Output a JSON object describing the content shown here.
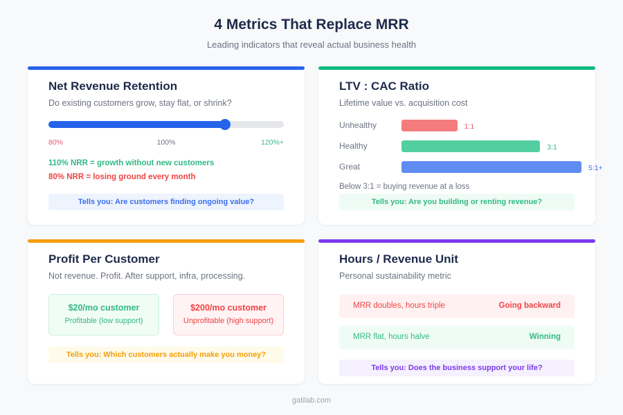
{
  "header": {
    "title": "4 Metrics That Replace MRR",
    "subtitle": "Leading indicators that reveal actual business health"
  },
  "nrr": {
    "title": "Net Revenue Retention",
    "subtitle": "Do existing customers grow, stay flat, or shrink?",
    "slider_percent": 75,
    "labels": [
      "80%",
      "100%",
      "120%+"
    ],
    "good": "110% NRR = growth without new customers",
    "bad": "80% NRR = losing ground every month",
    "tells": "Tells you: Are customers finding ongoing value?",
    "accent": "#2563eb"
  },
  "ltv": {
    "title": "LTV : CAC Ratio",
    "subtitle": "Lifetime value vs. acquisition cost",
    "rows": [
      {
        "label": "Unhealthy",
        "value": "1:1",
        "level": 0.31,
        "color": "#f47c7c",
        "text_color": "#f0506e"
      },
      {
        "label": "Healthy",
        "value": "3:1",
        "level": 0.77,
        "color": "#52cfa0",
        "text_color": "#34b886"
      },
      {
        "label": "Great",
        "value": "5:1+",
        "level": 1.0,
        "color": "#5f8cf0",
        "text_color": "#3b6ef0"
      }
    ],
    "note": "Below 3:1 = buying revenue at a loss",
    "tells": "Tells you: Are you building or renting revenue?",
    "accent": "#10b981"
  },
  "profit": {
    "title": "Profit Per Customer",
    "subtitle": "Not revenue. Profit. After support, infra, processing.",
    "good": {
      "title": "$20/mo customer",
      "desc": "Profitable (low support)"
    },
    "bad": {
      "title": "$200/mo customer",
      "desc": "Unprofitable (high support)"
    },
    "tells": "Tells you: Which customers actually make you money?",
    "accent": "#f59e0b"
  },
  "hours": {
    "title": "Hours / Revenue Unit",
    "subtitle": "Personal sustainability metric",
    "rows": [
      {
        "text": "MRR doubles, hours triple",
        "verdict": "Going backward"
      },
      {
        "text": "MRR flat, hours halve",
        "verdict": "Winning"
      }
    ],
    "tells": "Tells you: Does the business support your life?",
    "accent": "#7c3aed"
  },
  "footer": "gatilab.com"
}
